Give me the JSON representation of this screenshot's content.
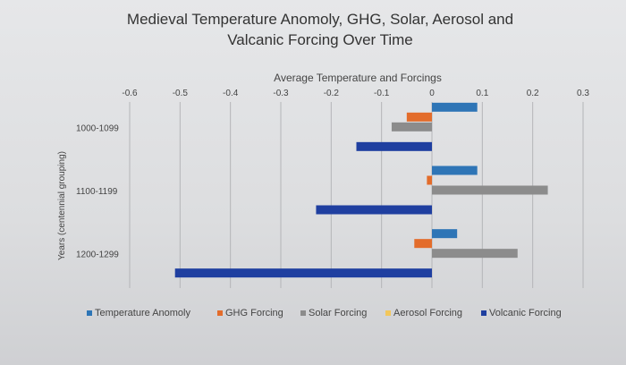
{
  "chart_data": {
    "type": "bar",
    "orientation": "horizontal",
    "title_lines": [
      "Medieval Temperature Anomoly, GHG, Solar, Aerosol and",
      "Valcanic Forcing Over Time"
    ],
    "xlabel": "Average Temperature and Forcings",
    "ylabel": "Years (centennial grouping)",
    "xlim": [
      -0.6,
      0.3
    ],
    "xticks": [
      "-0.6",
      "-0.5",
      "-0.4",
      "-0.3",
      "-0.2",
      "-0.1",
      "0",
      "0.1",
      "0.2",
      "0.3"
    ],
    "categories": [
      "1000-1099",
      "1100-1199",
      "1200-1299"
    ],
    "series": [
      {
        "name": "Temperature Anomoly",
        "color": "#2e75b6",
        "values": [
          0.09,
          0.09,
          0.05
        ]
      },
      {
        "name": "GHG Forcing",
        "color": "#e36c2b",
        "values": [
          -0.05,
          -0.01,
          -0.035
        ]
      },
      {
        "name": "Solar Forcing",
        "color": "#8c8c8c",
        "values": [
          -0.08,
          0.23,
          0.17
        ]
      },
      {
        "name": "Aerosol Forcing",
        "color": "#f2c75c",
        "values": [
          0,
          0,
          0
        ]
      },
      {
        "name": "Volcanic Forcing",
        "color": "#1f3fa0",
        "values": [
          -0.15,
          -0.23,
          -0.51
        ]
      }
    ],
    "grid": true,
    "legend_position": "bottom"
  }
}
